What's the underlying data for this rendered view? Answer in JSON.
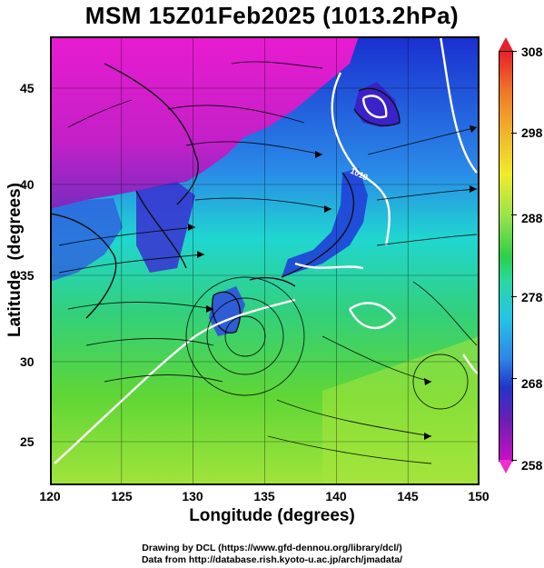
{
  "title": "MSM 15Z01Feb2025 (1013.2hPa)",
  "x_axis": {
    "label": "Longitude (degrees)",
    "ticks": [
      "120",
      "125",
      "130",
      "135",
      "140",
      "145",
      "150"
    ]
  },
  "y_axis": {
    "label": "Latitude  (degrees)",
    "ticks": [
      "25",
      "30",
      "35",
      "40",
      "45"
    ]
  },
  "colorbar": {
    "ticks": [
      "308",
      "298",
      "288",
      "278",
      "268",
      "258"
    ]
  },
  "contour_label": "1013",
  "credits": {
    "line1": "Drawing by DCL (https://www.gfd-dennou.org/library/dcl/)",
    "line2": "Data from http://database.rish.kyoto-u.ac.jp/arch/jmadata/"
  }
}
